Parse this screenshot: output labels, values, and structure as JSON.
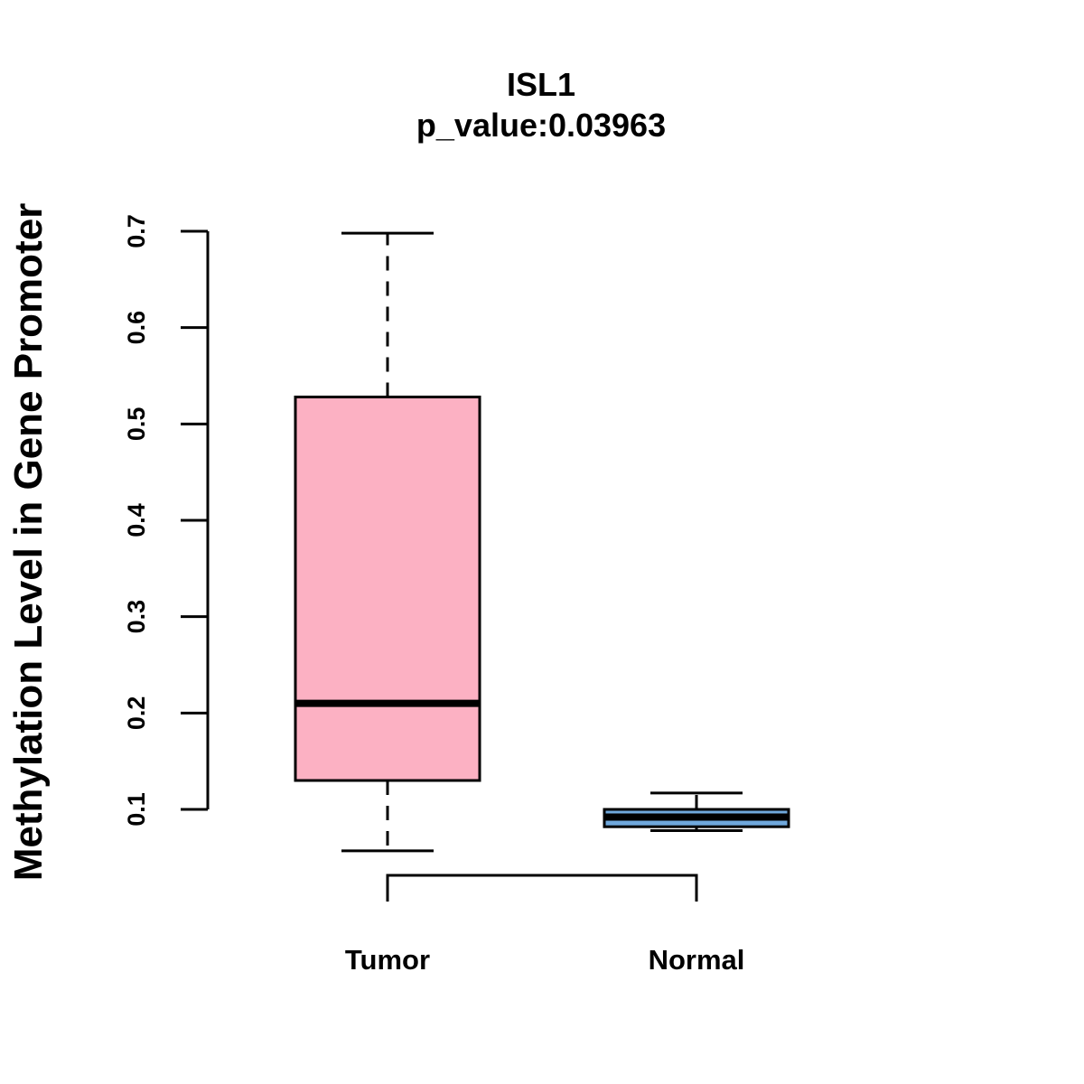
{
  "chart_data": {
    "type": "boxplot",
    "title": "ISL1",
    "subtitle": "p_value:0.03963",
    "xlabel": "",
    "ylabel": "Methylation Level in Gene Promoter",
    "ylim": [
      0.1,
      0.7
    ],
    "yticks": [
      {
        "value": 0.1,
        "label": "0.1"
      },
      {
        "value": 0.2,
        "label": "0.2"
      },
      {
        "value": 0.3,
        "label": "0.3"
      },
      {
        "value": 0.4,
        "label": "0.4"
      },
      {
        "value": 0.5,
        "label": "0.5"
      },
      {
        "value": 0.6,
        "label": "0.6"
      },
      {
        "value": 0.7,
        "label": "0.7"
      }
    ],
    "categories": [
      "Tumor",
      "Normal"
    ],
    "groups": [
      {
        "name": "Tumor",
        "whisker_low": 0.057,
        "q1": 0.13,
        "median": 0.21,
        "q3": 0.528,
        "whisker_high": 0.698,
        "color": "#FCB1C3"
      },
      {
        "name": "Normal",
        "whisker_low": 0.078,
        "q1": 0.082,
        "median": 0.092,
        "q3": 0.1,
        "whisker_high": 0.117,
        "color": "#6FA8DC"
      }
    ],
    "grid": false,
    "annotation": "bracket connecting Tumor and Normal"
  }
}
